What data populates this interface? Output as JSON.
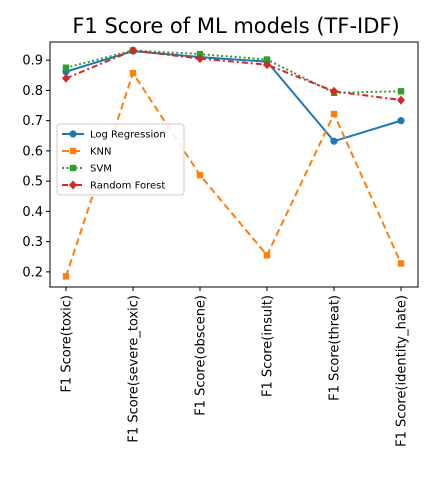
{
  "chart_data": {
    "type": "line",
    "title": "F1 Score of ML models (TF-IDF)",
    "xlabel": "",
    "ylabel": "",
    "categories": [
      "F1 Score(toxic)",
      "F1 Score(severe_toxic)",
      "F1 Score(obscene)",
      "F1 Score(insult)",
      "F1 Score(threat)",
      "F1 Score(identity_hate)"
    ],
    "ylim": [
      0.15,
      0.96
    ],
    "yticks": [
      0.2,
      0.3,
      0.4,
      0.5,
      0.6,
      0.7,
      0.8,
      0.9
    ],
    "grid": false,
    "legend_position": "center-left",
    "series": [
      {
        "name": "Log Regression",
        "color": "#1f77b4",
        "marker": "circle",
        "dash": "solid",
        "values": [
          0.862,
          0.93,
          0.91,
          0.895,
          0.632,
          0.7
        ]
      },
      {
        "name": "KNN",
        "color": "#ff7f0e",
        "marker": "square",
        "dash": "dashed",
        "values": [
          0.185,
          0.857,
          0.52,
          0.255,
          0.722,
          0.228
        ]
      },
      {
        "name": "SVM",
        "color": "#2ca02c",
        "marker": "square",
        "dash": "dotted",
        "values": [
          0.875,
          0.932,
          0.92,
          0.902,
          0.792,
          0.797
        ]
      },
      {
        "name": "Random Forest",
        "color": "#d62728",
        "marker": "diamond",
        "dash": "dashdot",
        "values": [
          0.84,
          0.932,
          0.905,
          0.885,
          0.797,
          0.768
        ]
      }
    ]
  }
}
